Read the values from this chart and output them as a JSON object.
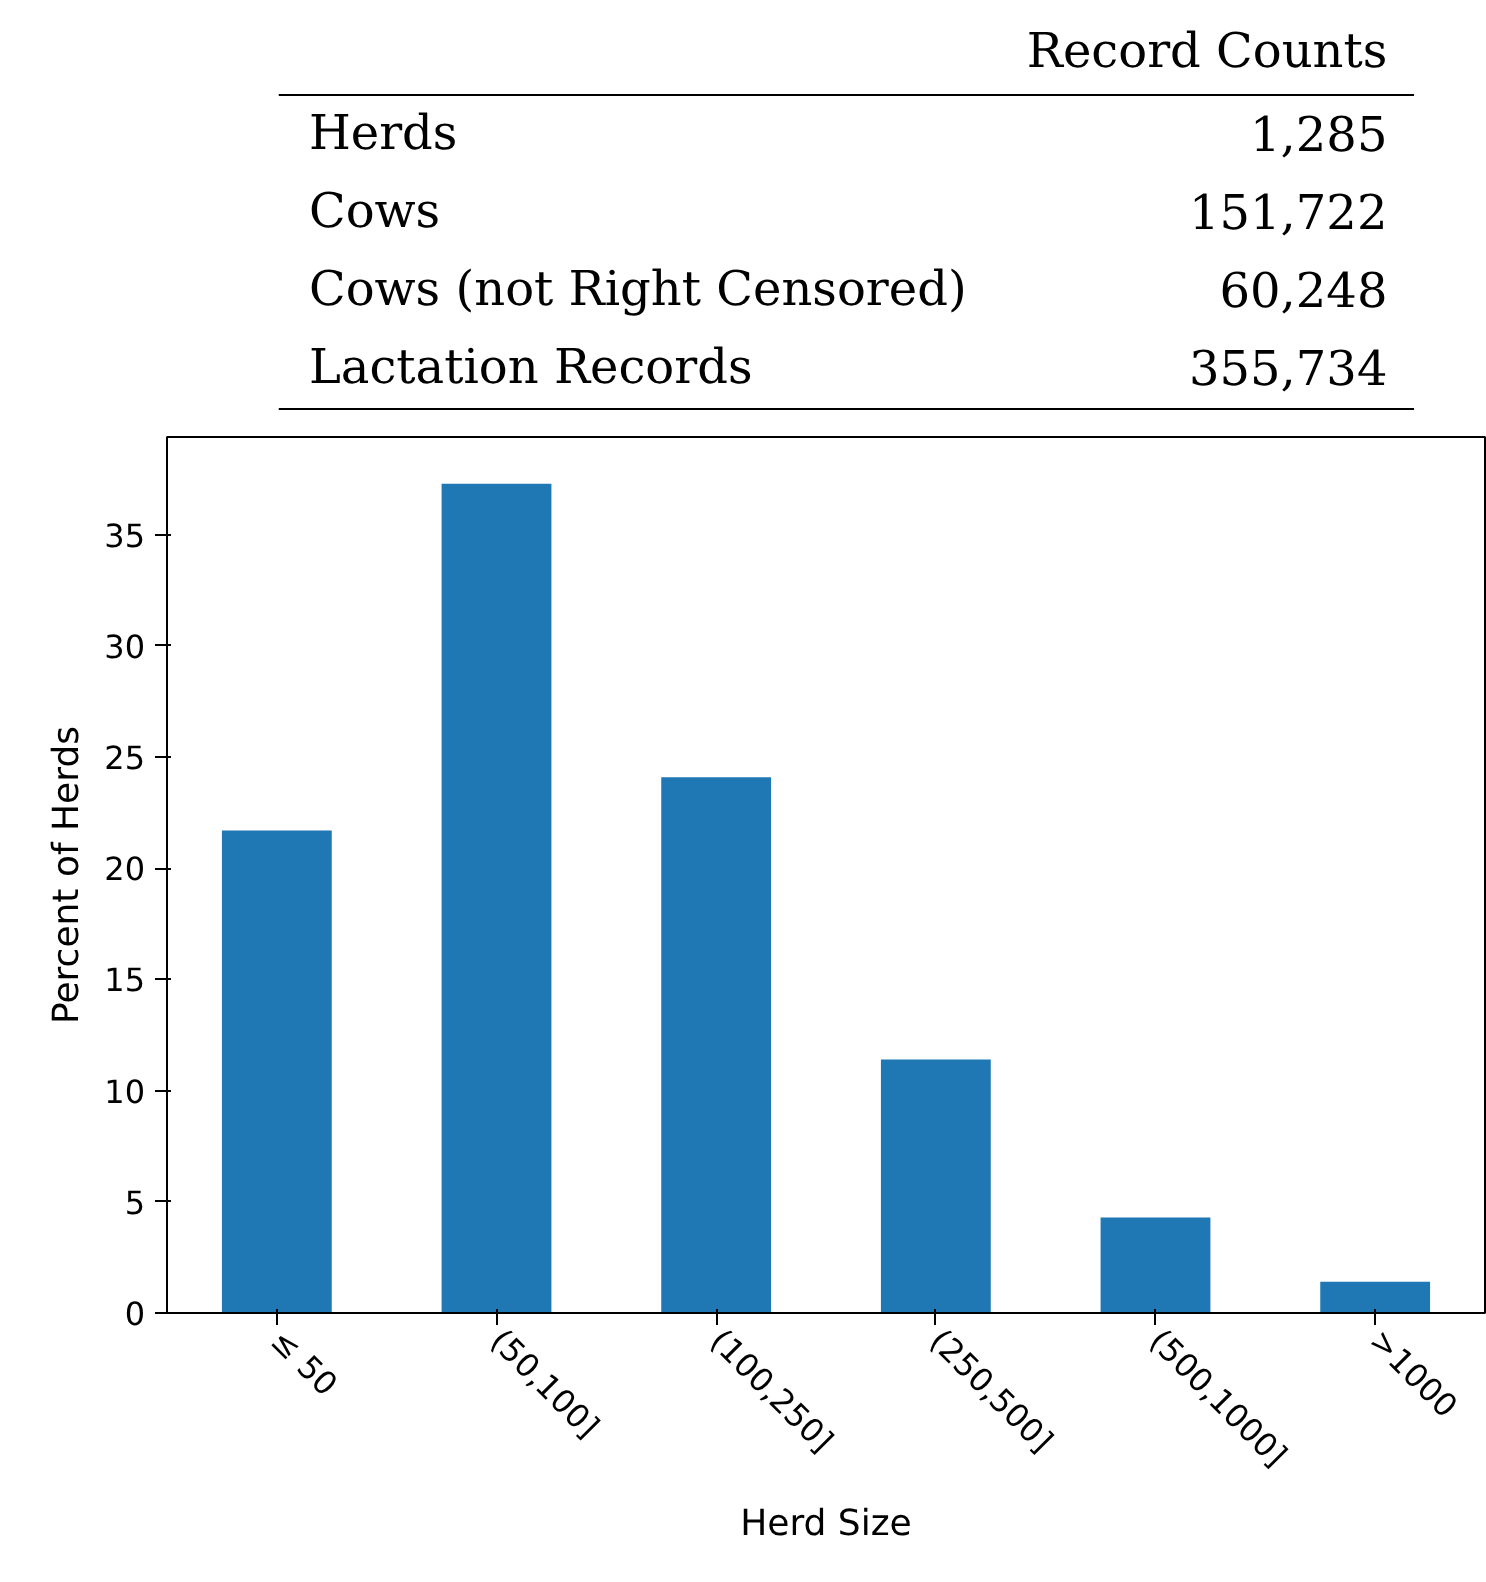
{
  "chart_data": [
    {
      "type": "other",
      "title": "Record Counts",
      "categories": [
        "Herds",
        "Cows",
        "Cows (not Right Censored)",
        "Lactation Records"
      ],
      "annotations": [
        "1,285",
        "151,722",
        "60,248",
        "355,734"
      ]
    },
    {
      "type": "bar",
      "xlabel": "Herd Size",
      "ylabel": "Percent of Herds",
      "categories": [
        "≤ 50",
        "(50,100]",
        "(100,250]",
        "(250,500]",
        "(500,1000]",
        ">1000"
      ],
      "values": [
        21.7,
        37.3,
        24.1,
        11.4,
        4.3,
        1.4
      ],
      "color": "#1f77b4",
      "ylim": [
        0,
        39.4
      ],
      "yticks": [
        0,
        5,
        10,
        15,
        20,
        25,
        30,
        35
      ],
      "grid": false
    }
  ]
}
